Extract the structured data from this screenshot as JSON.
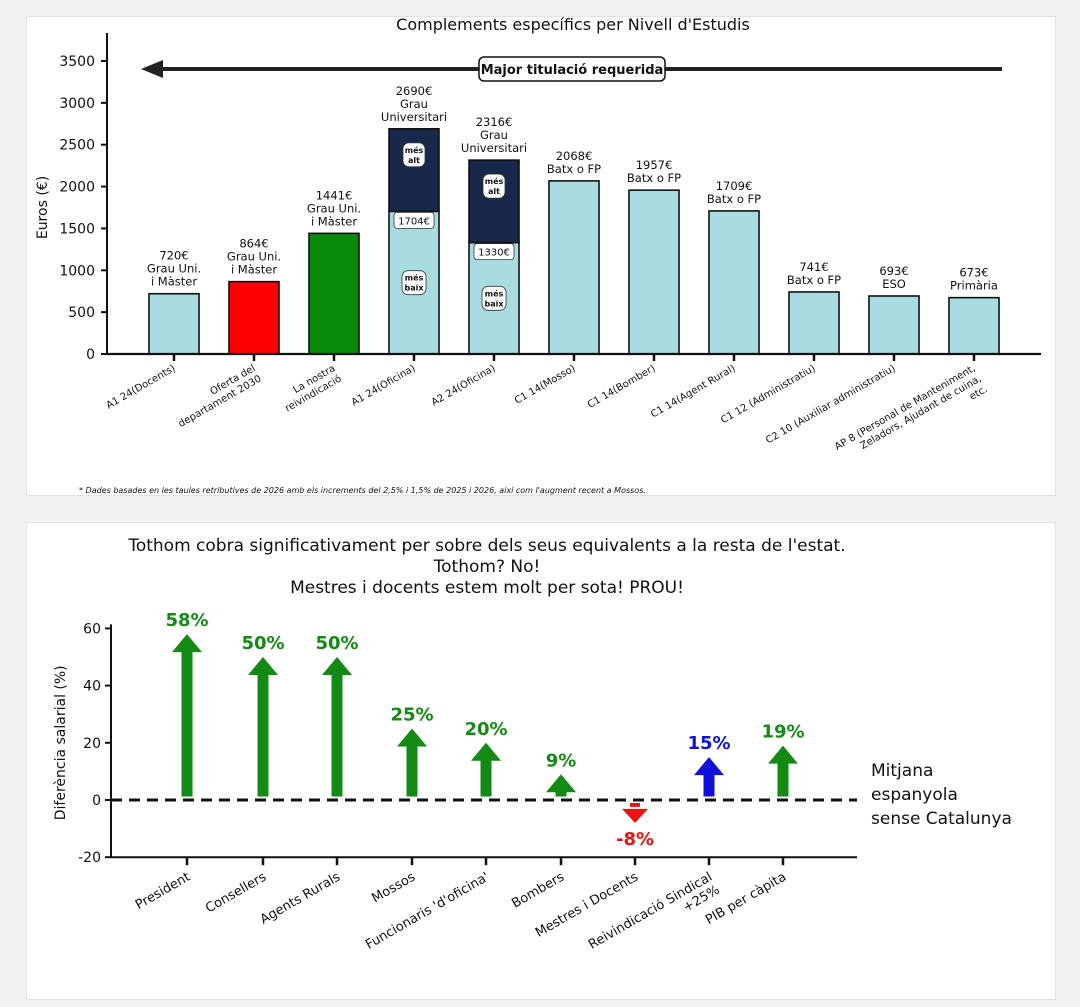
{
  "chart_data": [
    {
      "type": "bar",
      "title": "Complements específics per Nivell d'Estudis",
      "ylabel": "Euros (€)",
      "ylim": [
        0,
        3500
      ],
      "yticks": [
        0,
        500,
        1000,
        1500,
        2000,
        2500,
        3000,
        3500
      ],
      "banner": "Major titulació requerida",
      "footnote": "* Dades basades en les taules retributives de 2026 amb els increments del 2,5% i 1,5% de 2025 i 2026, així com l'augment recent a Mossos.",
      "colors": {
        "default": "#a9dce0",
        "red": "#ff0000",
        "green": "#0a8a0a",
        "navy": "#18284a"
      },
      "bars": [
        {
          "category": "A1 24(Docents)",
          "value": 720,
          "label": [
            "720€",
            "Grau Uni.",
            "i Màster"
          ],
          "color": "default"
        },
        {
          "category": [
            "Oferta del",
            "departament 2030"
          ],
          "value": 864,
          "label": [
            "864€",
            "Grau Uni.",
            "i Màster"
          ],
          "color": "red"
        },
        {
          "category": [
            "La nostra",
            "reivindicació"
          ],
          "value": 1441,
          "label": [
            "1441€",
            "Grau Uni.",
            "i Màster"
          ],
          "color": "green"
        },
        {
          "category": "A1 24(Oficina)",
          "value": 2690,
          "low": 1704,
          "label": [
            "2690€",
            "Grau",
            "Universitari"
          ],
          "low_label": "1704€",
          "seg_high": [
            "més",
            "alt"
          ],
          "seg_low": [
            "més",
            "baix"
          ],
          "color": "default"
        },
        {
          "category": "A2 24(Oficina)",
          "value": 2316,
          "low": 1330,
          "label": [
            "2316€",
            "Grau",
            "Universitari"
          ],
          "low_label": "1330€",
          "seg_high": [
            "més",
            "alt"
          ],
          "seg_low": [
            "més",
            "baix"
          ],
          "color": "default"
        },
        {
          "category": "C1 14(Mosso)",
          "value": 2068,
          "label": [
            "2068€",
            "Batx o FP"
          ],
          "color": "default"
        },
        {
          "category": "C1 14(Bomber)",
          "value": 1957,
          "label": [
            "1957€",
            "Batx o FP"
          ],
          "color": "default"
        },
        {
          "category": "C1 14(Agent Rural)",
          "value": 1709,
          "label": [
            "1709€",
            "Batx o FP"
          ],
          "color": "default"
        },
        {
          "category": "C1 12 (Administratiu)",
          "value": 741,
          "label": [
            "741€",
            "Batx o FP"
          ],
          "color": "default"
        },
        {
          "category": "C2 10 (Auxiliar administratiu)",
          "value": 693,
          "label": [
            "693€",
            "ESO"
          ],
          "color": "default"
        },
        {
          "category": [
            "AP 8 (Personal de Manteniment,",
            "Zeladors, Ajudant de cuina,",
            "etc."
          ],
          "value": 673,
          "label": [
            "673€",
            "Primària"
          ],
          "color": "default"
        }
      ]
    },
    {
      "type": "bar",
      "title": [
        "Tothom cobra significativament per sobre dels seus equivalents a la resta de l'estat.",
        "Tothom? No!",
        "Mestres i docents estem molt per sota! PROU!"
      ],
      "ylabel": "Diferència salarial (%)",
      "ylim": [
        -20,
        60
      ],
      "yticks": [
        -20,
        0,
        20,
        40,
        60
      ],
      "reference_line": [
        "Mitjana",
        "espanyola",
        "sense Catalunya"
      ],
      "colors": {
        "green": "#138a13",
        "red": "#ee1111",
        "blue": "#1010dd"
      },
      "bars": [
        {
          "category": [
            "President"
          ],
          "value": 58,
          "label": "58%",
          "color": "green"
        },
        {
          "category": [
            "Consellers"
          ],
          "value": 50,
          "label": "50%",
          "color": "green"
        },
        {
          "category": [
            "Agents Rurals"
          ],
          "value": 50,
          "label": "50%",
          "color": "green"
        },
        {
          "category": [
            "Mossos"
          ],
          "value": 25,
          "label": "25%",
          "color": "green"
        },
        {
          "category": [
            "Funcionaris 'd'oficina'"
          ],
          "value": 20,
          "label": "20%",
          "color": "green"
        },
        {
          "category": [
            "Bombers"
          ],
          "value": 9,
          "label": "9%",
          "color": "green"
        },
        {
          "category": [
            "Mestres i Docents"
          ],
          "value": -8,
          "label": "-8%",
          "color": "red"
        },
        {
          "category": [
            "Reivindicació Sindical",
            "+25%"
          ],
          "value": 15,
          "label": "15%",
          "color": "blue"
        },
        {
          "category": [
            "PIB per càpita"
          ],
          "value": 19,
          "label": "19%",
          "color": "green"
        }
      ]
    }
  ]
}
